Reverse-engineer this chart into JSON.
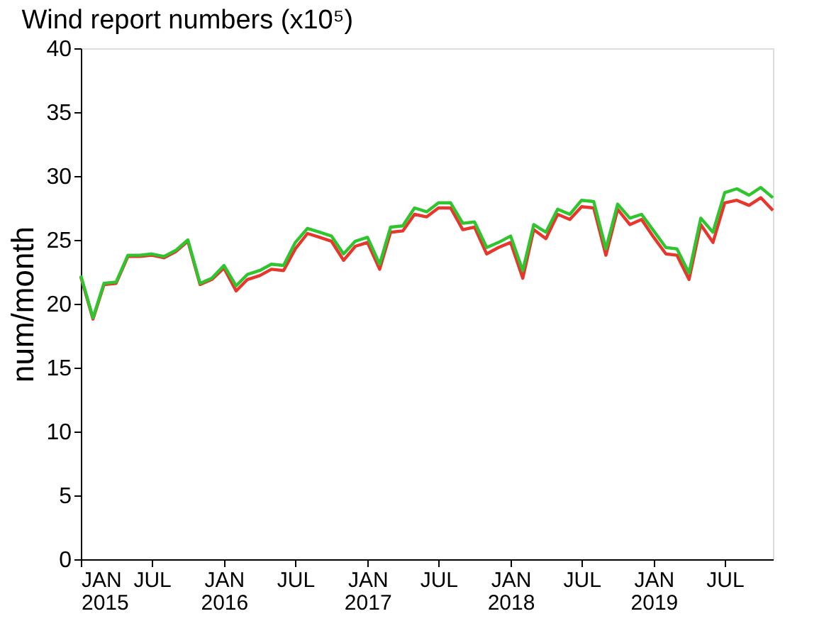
{
  "chart_data": {
    "type": "line",
    "title": "Wind report numbers (x10⁵)",
    "ylabel": "num/month",
    "x": [
      "2015-01",
      "2015-02",
      "2015-03",
      "2015-04",
      "2015-05",
      "2015-06",
      "2015-07",
      "2015-08",
      "2015-09",
      "2015-10",
      "2015-11",
      "2015-12",
      "2016-01",
      "2016-02",
      "2016-03",
      "2016-04",
      "2016-05",
      "2016-06",
      "2016-07",
      "2016-08",
      "2016-09",
      "2016-10",
      "2016-11",
      "2016-12",
      "2017-01",
      "2017-02",
      "2017-03",
      "2017-04",
      "2017-05",
      "2017-06",
      "2017-07",
      "2017-08",
      "2017-09",
      "2017-10",
      "2017-11",
      "2017-12",
      "2018-01",
      "2018-02",
      "2018-03",
      "2018-04",
      "2018-05",
      "2018-06",
      "2018-07",
      "2018-08",
      "2018-09",
      "2018-10",
      "2018-11",
      "2018-12",
      "2019-01",
      "2019-02",
      "2019-03",
      "2019-04",
      "2019-05",
      "2019-06",
      "2019-07",
      "2019-08",
      "2019-09",
      "2019-10",
      "2019-11"
    ],
    "series": [
      {
        "color": "#e8362d",
        "values": [
          22.1,
          18.8,
          21.5,
          21.6,
          23.7,
          23.7,
          23.8,
          23.6,
          24.1,
          24.9,
          21.5,
          21.9,
          22.8,
          21.0,
          21.9,
          22.2,
          22.7,
          22.6,
          24.3,
          25.5,
          25.2,
          24.9,
          23.4,
          24.5,
          24.8,
          22.7,
          25.6,
          25.7,
          27.0,
          26.8,
          27.5,
          27.5,
          25.8,
          26.0,
          23.9,
          24.4,
          24.8,
          22.0,
          25.8,
          25.1,
          27.0,
          26.6,
          27.6,
          27.5,
          23.8,
          27.4,
          26.2,
          26.6,
          25.2,
          23.9,
          23.8,
          21.9,
          26.2,
          24.8,
          27.9,
          28.1,
          27.7,
          28.3,
          27.3
        ]
      },
      {
        "color": "#2ec52e",
        "values": [
          22.2,
          18.9,
          21.6,
          21.7,
          23.8,
          23.8,
          23.9,
          23.7,
          24.2,
          25.0,
          21.6,
          22.0,
          23.0,
          21.4,
          22.3,
          22.6,
          23.1,
          23.0,
          24.8,
          25.9,
          25.6,
          25.3,
          23.9,
          24.9,
          25.2,
          23.1,
          26.0,
          26.1,
          27.5,
          27.2,
          27.9,
          27.9,
          26.3,
          26.4,
          24.4,
          24.8,
          25.3,
          22.6,
          26.2,
          25.6,
          27.4,
          27.0,
          28.1,
          28.0,
          24.3,
          27.8,
          26.7,
          27.0,
          25.7,
          24.4,
          24.3,
          22.4,
          26.7,
          25.6,
          28.7,
          29.0,
          28.5,
          29.1,
          28.3
        ]
      }
    ],
    "xlim": [
      "2015-01",
      "2019-11"
    ],
    "xticks": [
      {
        "value": "2015-01",
        "label": "JAN\n2015"
      },
      {
        "value": "2015-07",
        "label": "JUL"
      },
      {
        "value": "2016-01",
        "label": "JAN\n2016"
      },
      {
        "value": "2016-07",
        "label": "JUL"
      },
      {
        "value": "2017-01",
        "label": "JAN\n2017"
      },
      {
        "value": "2017-07",
        "label": "JUL"
      },
      {
        "value": "2018-01",
        "label": "JAN\n2018"
      },
      {
        "value": "2018-07",
        "label": "JUL"
      },
      {
        "value": "2019-01",
        "label": "JAN\n2019"
      },
      {
        "value": "2019-07",
        "label": "JUL"
      }
    ],
    "ylim": [
      0,
      40
    ],
    "yticks": [
      0,
      5,
      10,
      15,
      20,
      25,
      30,
      35,
      40
    ],
    "grid": false,
    "marker": "none",
    "line_style": "solid"
  }
}
